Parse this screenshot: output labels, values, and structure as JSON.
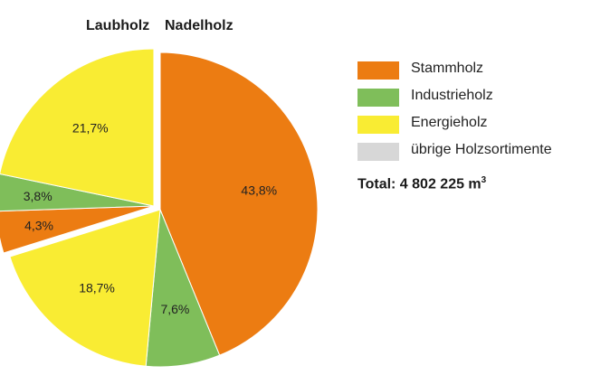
{
  "colors": {
    "Stammholz": "#ec7c12",
    "Industrieholz": "#7fbe5a",
    "Energieholz": "#f9ec33",
    "übrige Holzsortimente": "#d7d7d7"
  },
  "headers": {
    "laubholz": "Laubholz",
    "nadelholz": "Nadelholz"
  },
  "legend": [
    {
      "label": "Stammholz",
      "color": "#ec7c12"
    },
    {
      "label": "Industrieholz",
      "color": "#7fbe5a"
    },
    {
      "label": "Energieholz",
      "color": "#f9ec33"
    },
    {
      "label": "übrige Holzsortimente",
      "color": "#d7d7d7"
    }
  ],
  "total": {
    "text": "Total: 4 802 225 m",
    "unit_exp": "3"
  },
  "chart_data": {
    "type": "pie",
    "title": "",
    "groups": [
      {
        "name": "Nadelholz",
        "slices": [
          {
            "category": "Stammholz",
            "value": 43.8,
            "label": "43,8%"
          },
          {
            "category": "Industrieholz",
            "value": 7.6,
            "label": "7,6%"
          },
          {
            "category": "Energieholz",
            "value": 18.7,
            "label": "18,7%"
          }
        ]
      },
      {
        "name": "Laubholz",
        "slices": [
          {
            "category": "Stammholz",
            "value": 4.3,
            "label": "4,3%"
          },
          {
            "category": "Industrieholz",
            "value": 3.8,
            "label": "3,8%"
          },
          {
            "category": "Energieholz",
            "value": 21.7,
            "label": "21,7%"
          }
        ]
      }
    ],
    "legend_position": "right"
  }
}
